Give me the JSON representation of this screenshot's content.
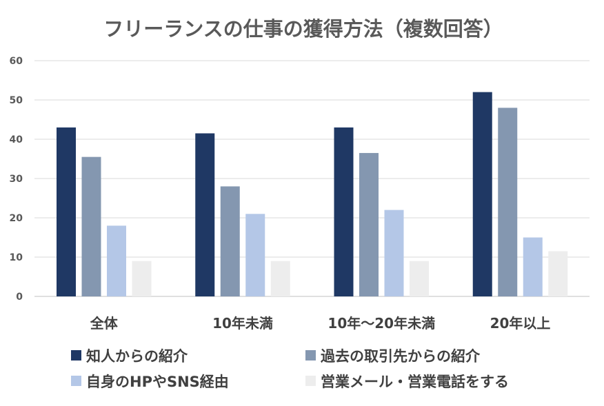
{
  "chart_data": {
    "type": "bar",
    "title": "フリーランスの仕事の獲得方法（複数回答）",
    "categories": [
      "全体",
      "10年未満",
      "10年～20年未満",
      "20年以上"
    ],
    "series": [
      {
        "name": "知人からの紹介",
        "color": "#1f3864",
        "values": [
          43,
          41.5,
          43,
          52
        ]
      },
      {
        "name": "過去の取引先からの紹介",
        "color": "#8497b0",
        "values": [
          35.5,
          28,
          36.5,
          48
        ]
      },
      {
        "name": "自身のHPやSNS経由",
        "color": "#b4c7e7",
        "values": [
          18,
          21,
          22,
          15
        ]
      },
      {
        "name": "営業メール・営業電話をする",
        "color": "#ededed",
        "values": [
          9,
          9,
          9,
          11.5
        ]
      }
    ],
    "ylim": [
      0,
      60
    ],
    "yticks": [
      "0",
      "10",
      "20",
      "30",
      "40",
      "50",
      "60"
    ],
    "grid": true,
    "legend": "bottom"
  }
}
